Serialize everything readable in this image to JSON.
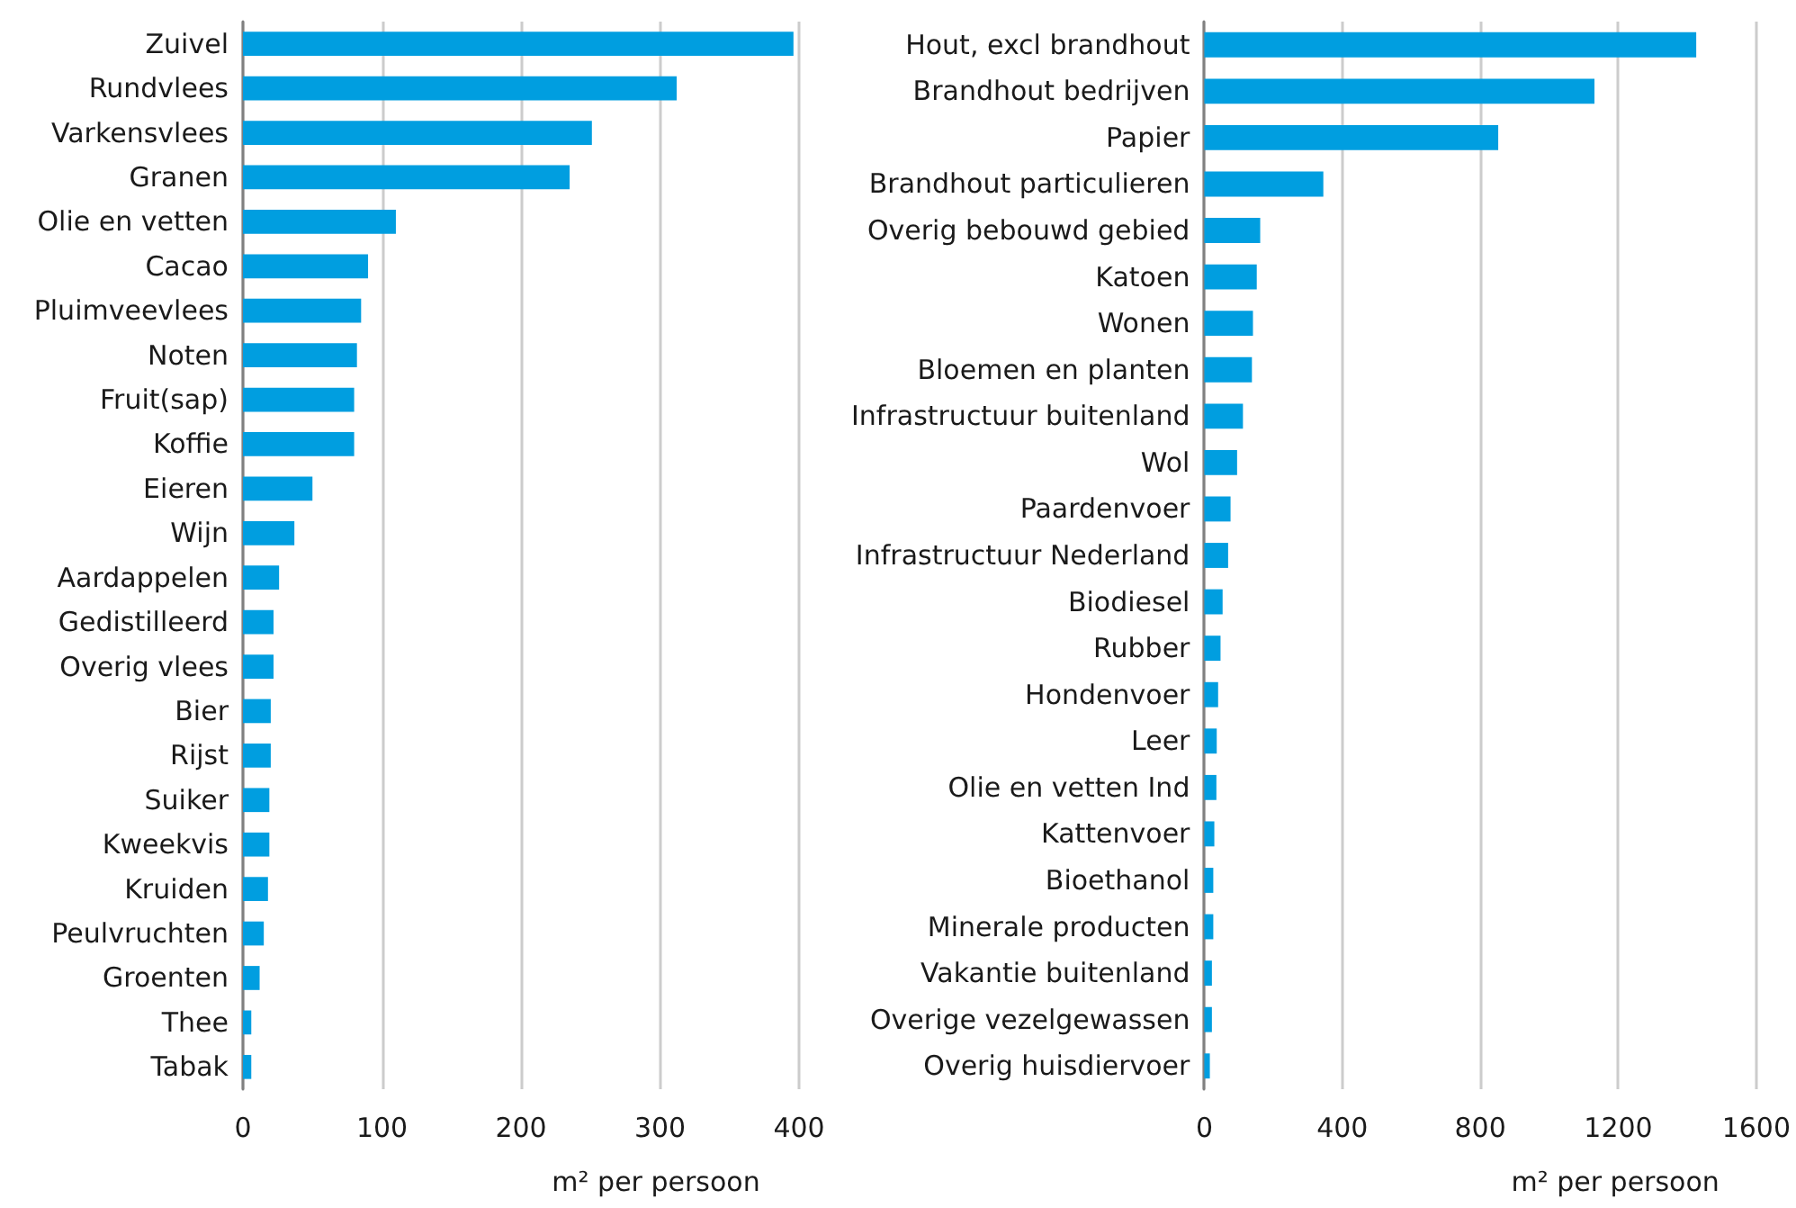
{
  "chart_data": [
    {
      "type": "bar",
      "orientation": "horizontal",
      "categories": [
        "Zuivel",
        "Rundvlees",
        "Varkensvlees",
        "Granen",
        "Olie en vetten",
        "Cacao",
        "Pluimveevlees",
        "Noten",
        "Fruit(sap)",
        "Koffie",
        "Eieren",
        "Wijn",
        "Aardappelen",
        "Gedistilleerd",
        "Overig vlees",
        "Bier",
        "Rijst",
        "Suiker",
        "Kweekvis",
        "Kruiden",
        "Peulvruchten",
        "Groenten",
        "Thee",
        "Tabak"
      ],
      "values": [
        396,
        312,
        251,
        235,
        110,
        90,
        85,
        82,
        80,
        80,
        50,
        37,
        26,
        22,
        22,
        20,
        20,
        19,
        19,
        18,
        15,
        12,
        6,
        6
      ],
      "color": "#009ee0",
      "xlabel": "m² per persoon",
      "xlim": [
        0,
        400
      ],
      "xticks": [
        0,
        100,
        200,
        300,
        400
      ],
      "grid": "x"
    },
    {
      "type": "bar",
      "orientation": "horizontal",
      "categories": [
        "Hout, excl brandhout",
        "Brandhout bedrijven",
        "Papier",
        "Brandhout particulieren",
        "Overig bebouwd gebied",
        "Katoen",
        "Wonen",
        "Bloemen en planten",
        "Infrastructuur buitenland",
        "Wol",
        "Paardenvoer",
        "Infrastructuur Nederland",
        "Biodiesel",
        "Rubber",
        "Hondenvoer",
        "Leer",
        "Olie en vetten Ind",
        "Kattenvoer",
        "Bioethanol",
        "Minerale producten",
        "Vakantie buitenland",
        "Overige vezelgewassen",
        "Overig huisdiervoer"
      ],
      "values": [
        1426,
        1131,
        852,
        345,
        162,
        152,
        141,
        138,
        112,
        95,
        76,
        69,
        53,
        47,
        40,
        36,
        35,
        29,
        26,
        26,
        22,
        22,
        16
      ],
      "color": "#009ee0",
      "xlabel": "m² per persoon",
      "xlim": [
        0,
        1600
      ],
      "xticks": [
        0,
        400,
        800,
        1200,
        1600
      ],
      "grid": "x"
    }
  ]
}
